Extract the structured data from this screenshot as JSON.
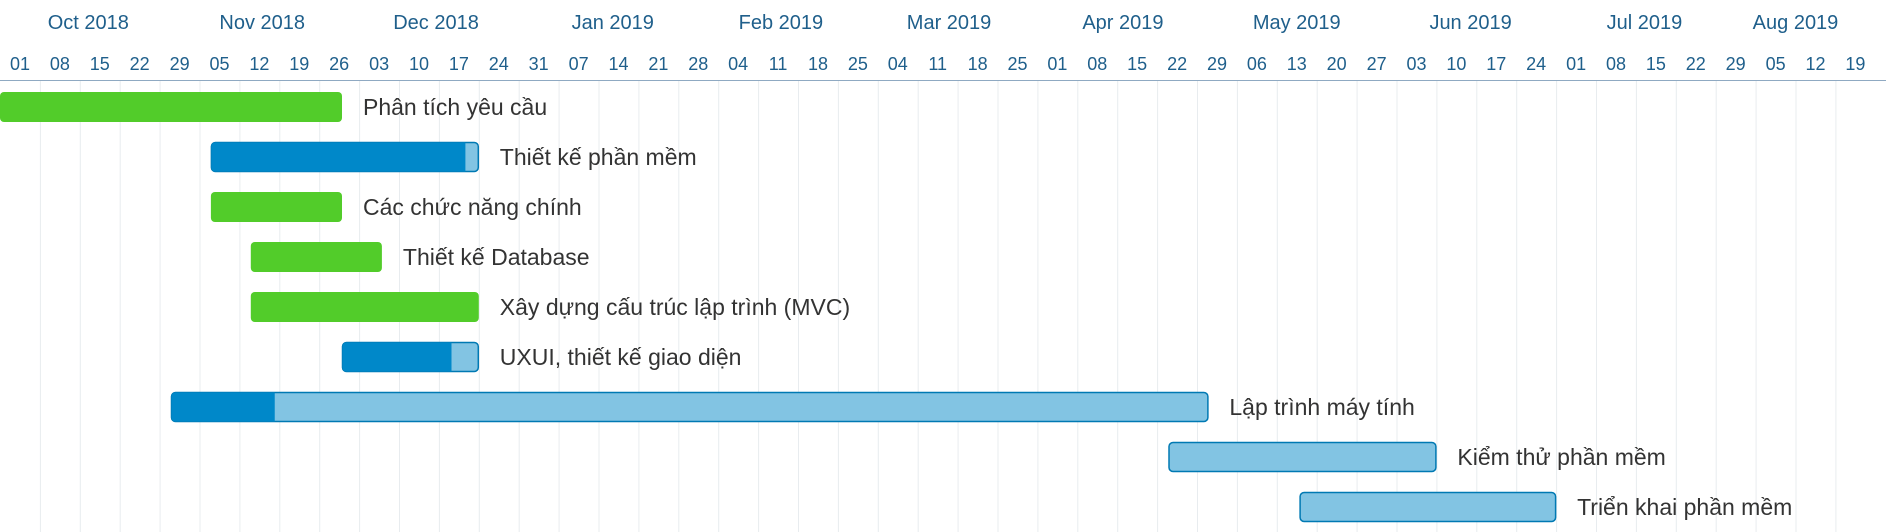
{
  "chart_data": {
    "type": "gantt",
    "title": "",
    "x_axis": {
      "start": "2018-10-01",
      "end": "2019-08-23",
      "months": [
        {
          "label": "Oct 2018",
          "date": "2018-10-01"
        },
        {
          "label": "Nov 2018",
          "date": "2018-11-01"
        },
        {
          "label": "Dec 2018",
          "date": "2018-12-01"
        },
        {
          "label": "Jan 2019",
          "date": "2019-01-01"
        },
        {
          "label": "Feb 2019",
          "date": "2019-02-01"
        },
        {
          "label": "Mar 2019",
          "date": "2019-03-01"
        },
        {
          "label": "Apr 2019",
          "date": "2019-04-01"
        },
        {
          "label": "May 2019",
          "date": "2019-05-01"
        },
        {
          "label": "Jun 2019",
          "date": "2019-06-01"
        },
        {
          "label": "Jul 2019",
          "date": "2019-07-01"
        },
        {
          "label": "Aug 2019",
          "date": "2019-08-01"
        }
      ],
      "week_ticks": [
        {
          "label": "01",
          "date": "2018-10-01"
        },
        {
          "label": "08",
          "date": "2018-10-08"
        },
        {
          "label": "15",
          "date": "2018-10-15"
        },
        {
          "label": "22",
          "date": "2018-10-22"
        },
        {
          "label": "29",
          "date": "2018-10-29"
        },
        {
          "label": "05",
          "date": "2018-11-05"
        },
        {
          "label": "12",
          "date": "2018-11-12"
        },
        {
          "label": "19",
          "date": "2018-11-19"
        },
        {
          "label": "26",
          "date": "2018-11-26"
        },
        {
          "label": "03",
          "date": "2018-12-03"
        },
        {
          "label": "10",
          "date": "2018-12-10"
        },
        {
          "label": "17",
          "date": "2018-12-17"
        },
        {
          "label": "24",
          "date": "2018-12-24"
        },
        {
          "label": "31",
          "date": "2018-12-31"
        },
        {
          "label": "07",
          "date": "2019-01-07"
        },
        {
          "label": "14",
          "date": "2019-01-14"
        },
        {
          "label": "21",
          "date": "2019-01-21"
        },
        {
          "label": "28",
          "date": "2019-01-28"
        },
        {
          "label": "04",
          "date": "2019-02-04"
        },
        {
          "label": "11",
          "date": "2019-02-11"
        },
        {
          "label": "18",
          "date": "2019-02-18"
        },
        {
          "label": "25",
          "date": "2019-02-25"
        },
        {
          "label": "04",
          "date": "2019-03-04"
        },
        {
          "label": "11",
          "date": "2019-03-11"
        },
        {
          "label": "18",
          "date": "2019-03-18"
        },
        {
          "label": "25",
          "date": "2019-03-25"
        },
        {
          "label": "01",
          "date": "2019-04-01"
        },
        {
          "label": "08",
          "date": "2019-04-08"
        },
        {
          "label": "15",
          "date": "2019-04-15"
        },
        {
          "label": "22",
          "date": "2019-04-22"
        },
        {
          "label": "29",
          "date": "2019-04-29"
        },
        {
          "label": "06",
          "date": "2019-05-06"
        },
        {
          "label": "13",
          "date": "2019-05-13"
        },
        {
          "label": "20",
          "date": "2019-05-20"
        },
        {
          "label": "27",
          "date": "2019-05-27"
        },
        {
          "label": "03",
          "date": "2019-06-03"
        },
        {
          "label": "10",
          "date": "2019-06-10"
        },
        {
          "label": "17",
          "date": "2019-06-17"
        },
        {
          "label": "24",
          "date": "2019-06-24"
        },
        {
          "label": "01",
          "date": "2019-07-01"
        },
        {
          "label": "08",
          "date": "2019-07-08"
        },
        {
          "label": "15",
          "date": "2019-07-15"
        },
        {
          "label": "22",
          "date": "2019-07-22"
        },
        {
          "label": "29",
          "date": "2019-07-29"
        },
        {
          "label": "05",
          "date": "2019-08-05"
        },
        {
          "label": "12",
          "date": "2019-08-12"
        },
        {
          "label": "19",
          "date": "2019-08-19"
        }
      ],
      "grid": true
    },
    "tasks": [
      {
        "name": "Phân tích yêu cầu",
        "start": "2018-10-01",
        "end": "2018-11-30",
        "progress": 1.0
      },
      {
        "name": "Thiết kế phần mềm",
        "start": "2018-11-07",
        "end": "2018-12-24",
        "progress": 0.95
      },
      {
        "name": "Các chức năng chính",
        "start": "2018-11-07",
        "end": "2018-11-30",
        "progress": 1.0
      },
      {
        "name": "Thiết kế Database",
        "start": "2018-11-14",
        "end": "2018-12-07",
        "progress": 1.0
      },
      {
        "name": "Xây dựng cấu trúc lập trình (MVC)",
        "start": "2018-11-14",
        "end": "2018-12-24",
        "progress": 1.0
      },
      {
        "name": "UXUI, thiết kế giao diện",
        "start": "2018-11-30",
        "end": "2018-12-24",
        "progress": 0.8
      },
      {
        "name": "Lập trình máy tính",
        "start": "2018-10-31",
        "end": "2019-05-01",
        "progress": 0.1
      },
      {
        "name": "Kiểm thử phần mềm",
        "start": "2019-04-24",
        "end": "2019-06-10",
        "progress": 0
      },
      {
        "name": "Triển khai phần mềm",
        "start": "2019-05-17",
        "end": "2019-07-01",
        "progress": 0
      }
    ],
    "colors": {
      "complete": "#52cc2a",
      "progress": "#0088c9",
      "remaining": "#82c4e3",
      "border": "#0079b3",
      "axis_text": "#1f5f8b",
      "grid": "#e8ecef",
      "header_line": "#8fa9c2",
      "task_text": "#333333"
    }
  }
}
